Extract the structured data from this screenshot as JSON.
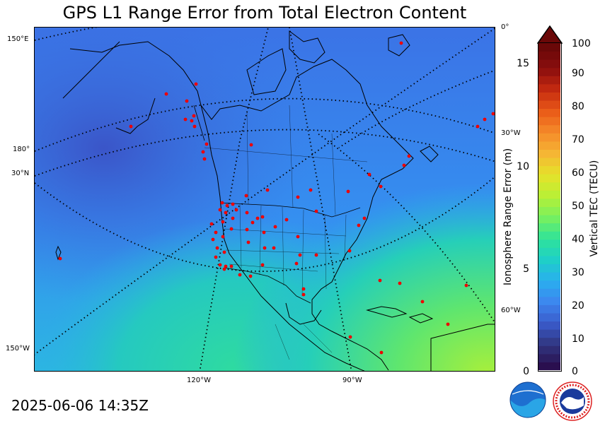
{
  "title": "GPS L1 Range Error from Total Electron Content",
  "timestamp": "2025-06-06 14:35Z",
  "map": {
    "lat_labels": [
      "150°E",
      "180°",
      "30°N",
      "150°W"
    ],
    "lon_labels_right": [
      "0°",
      "30°W",
      "60°W"
    ],
    "lon_labels_bottom": [
      "120°W",
      "90°W"
    ],
    "overlays": [
      "coastlines",
      "country-borders",
      "state-province-borders",
      "graticule-dotted",
      "gps-station-markers"
    ]
  },
  "colorbar": {
    "left_axis_label": "Ionosphere Range Error (m)",
    "left_ticks": [
      "0",
      "5",
      "10",
      "15"
    ],
    "right_axis_label": "Vertical TEC (TECU)",
    "right_ticks": [
      "0",
      "10",
      "20",
      "30",
      "40",
      "50",
      "60",
      "70",
      "80",
      "90",
      "100"
    ],
    "min": 0,
    "max": 100,
    "extend": "max",
    "colors": [
      "#2a0f4f",
      "#30357f",
      "#3a5ac9",
      "#3d86ef",
      "#2aaeef",
      "#1fcfc8",
      "#2fe39a",
      "#78f05e",
      "#b8f036",
      "#e6e22a",
      "#f5b634",
      "#f58a2a",
      "#e95a18",
      "#c52a10",
      "#8a0e0e",
      "#6a0808"
    ]
  },
  "logos": [
    "noaa-logo",
    "national-weather-service-logo"
  ],
  "colors": {
    "background_field_blue": "#3a6de0",
    "field_teal": "#22c4c6",
    "field_green": "#6fe86a",
    "station_marker": "#ee0000"
  }
}
